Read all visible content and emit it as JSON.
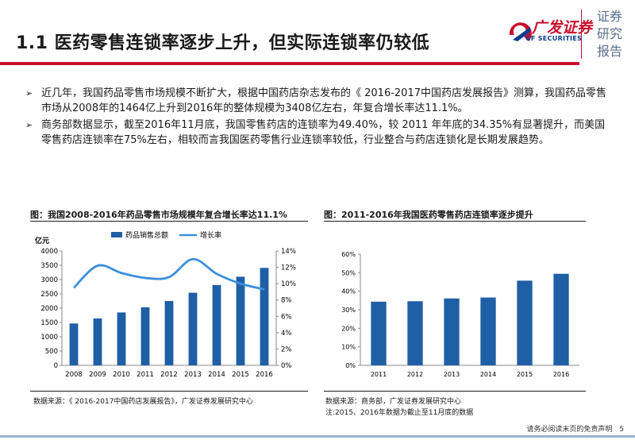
{
  "header": {
    "title": "1.1 医药零售连锁率逐步上升，但实际连锁率仍较低",
    "logo_text": "广发证券",
    "logo_sub": "GF SECURITIES",
    "side_label": [
      "证券",
      "研究",
      "报告"
    ],
    "brand_color": "#c8102e"
  },
  "bullets": [
    "近几年，我国药品零售市场规模不断扩大，根据中国药店杂志发布的《 2016-2017中国药店发展报告》测算，我国药品零售市场从2008年的1464亿上升到2016年的整体规模为3408亿左右，年复合增长率达11.1%。",
    "商务部数据显示，截至2016年11月底，我国零售药店的连锁率为49.40%，较 2011 年年底的34.35%有显著提升，而美国零售药店连锁率在75%左右，相较而言我国医药零售行业连锁率较低，行业整合与药店连锁化是长期发展趋势。"
  ],
  "captions": {
    "left": "图：我国2008-2016年药品零售市场规模年复合增长率达11.1%",
    "right": "图：2011-2016年我国医药零售药店连锁率逐步提升"
  },
  "sources": {
    "left": "数据来源：《 2016-2017中国药店发展报告》，广发证券发展研究中心",
    "right": "数据来源：商务部，广发证券发展研究中心",
    "right_note": "注:2015、2016年数据为截止至11月底的数据"
  },
  "footer": {
    "disclaimer": "请务必阅读末页的免责声明",
    "page": "5"
  },
  "chart_data": [
    {
      "type": "bar",
      "categories": [
        "2008",
        "2009",
        "2010",
        "2011",
        "2012",
        "2013",
        "2014",
        "2015",
        "2016"
      ],
      "series": [
        {
          "name": "药品销售总额",
          "type": "bar",
          "axis": "left",
          "values": [
            1464,
            1640,
            1850,
            2030,
            2250,
            2540,
            2810,
            3100,
            3408
          ],
          "color": "#1f5fa6"
        },
        {
          "name": "增长率",
          "type": "line",
          "axis": "right",
          "values": [
            9.5,
            12.2,
            11.3,
            10.7,
            10.8,
            13.0,
            11.2,
            10.0,
            9.3
          ],
          "color": "#3c8fdc"
        }
      ],
      "ylabel": "亿元",
      "ylim": [
        0,
        4000
      ],
      "yticks": [
        0,
        500,
        1000,
        1500,
        2000,
        2500,
        3000,
        3500,
        4000
      ],
      "y2lim": [
        0,
        14
      ],
      "y2ticks": [
        "0%",
        "2%",
        "4%",
        "6%",
        "8%",
        "10%",
        "12%",
        "14%"
      ],
      "legend": "top"
    },
    {
      "type": "bar",
      "categories": [
        "2011",
        "2012",
        "2013",
        "2014",
        "2015",
        "2016"
      ],
      "values": [
        34.35,
        34.6,
        36.1,
        36.6,
        45.7,
        49.4
      ],
      "ylim": [
        0,
        60
      ],
      "yticks": [
        "0%",
        "10%",
        "20%",
        "30%",
        "40%",
        "50%",
        "60%"
      ],
      "color": "#1f5fa6"
    }
  ]
}
